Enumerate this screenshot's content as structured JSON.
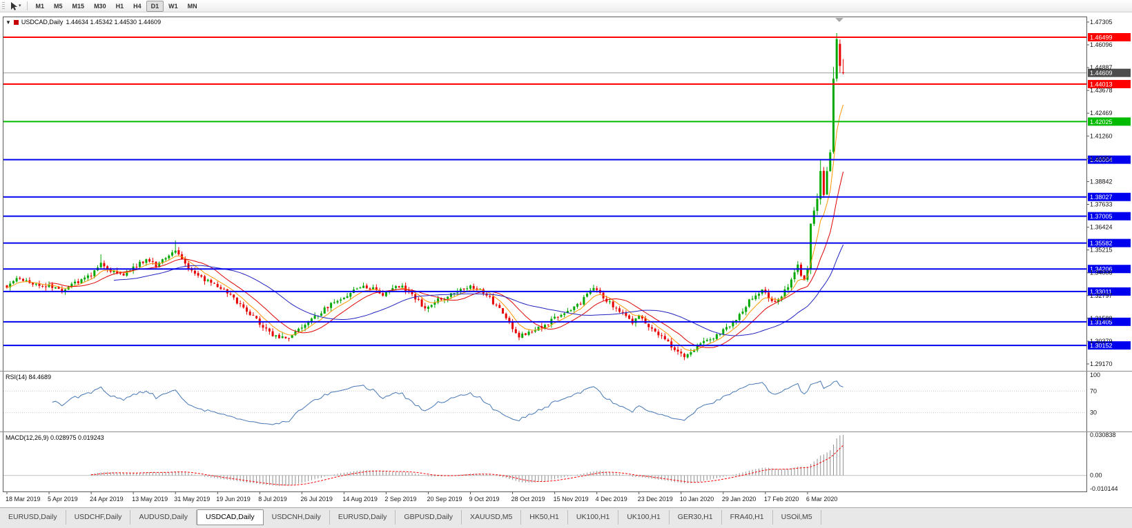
{
  "icons": {
    "toolbar_caret": "▾",
    "symbol_dropdown": "▼"
  },
  "toolbar": {
    "timeframes": [
      "M1",
      "M5",
      "M15",
      "M30",
      "H1",
      "H4",
      "D1",
      "W1",
      "MN"
    ],
    "active_timeframe": "D1"
  },
  "chart": {
    "symbol": "USDCAD,Daily",
    "ohlc": "1.44634 1.45342 1.44530 1.44609",
    "rsi_label": "RSI(14) 84.4689",
    "macd_label": "MACD(12,26,9) 0.028975 0.019243"
  },
  "chart_data": {
    "type": "candlestick",
    "title": "USDCAD Daily",
    "ylim": [
      1.2895,
      1.4745
    ],
    "bars": 259,
    "bull_color": "#00a800",
    "bear_color": "#e80000",
    "close_anchors": [
      [
        0,
        1.333
      ],
      [
        4,
        1.3372
      ],
      [
        8,
        1.334
      ],
      [
        13,
        1.3328
      ],
      [
        17,
        1.331
      ],
      [
        21,
        1.3348
      ],
      [
        26,
        1.3388
      ],
      [
        29,
        1.3445
      ],
      [
        32,
        1.3415
      ],
      [
        36,
        1.3392
      ],
      [
        39,
        1.3428
      ],
      [
        43,
        1.347
      ],
      [
        46,
        1.3442
      ],
      [
        49,
        1.3488
      ],
      [
        52,
        1.3522
      ],
      [
        54,
        1.3478
      ],
      [
        56,
        1.3432
      ],
      [
        58,
        1.3396
      ],
      [
        61,
        1.3362
      ],
      [
        65,
        1.333
      ],
      [
        68,
        1.3295
      ],
      [
        71,
        1.3248
      ],
      [
        74,
        1.3195
      ],
      [
        78,
        1.3132
      ],
      [
        81,
        1.3085
      ],
      [
        84,
        1.3048
      ],
      [
        87,
        1.3062
      ],
      [
        91,
        1.3108
      ],
      [
        94,
        1.315
      ],
      [
        97,
        1.3192
      ],
      [
        100,
        1.3235
      ],
      [
        104,
        1.3272
      ],
      [
        107,
        1.3302
      ],
      [
        110,
        1.3332
      ],
      [
        113,
        1.3315
      ],
      [
        116,
        1.3288
      ],
      [
        119,
        1.3318
      ],
      [
        122,
        1.3332
      ],
      [
        126,
        1.3262
      ],
      [
        129,
        1.3215
      ],
      [
        132,
        1.325
      ],
      [
        135,
        1.327
      ],
      [
        138,
        1.3298
      ],
      [
        141,
        1.3322
      ],
      [
        143,
        1.3334
      ],
      [
        146,
        1.331
      ],
      [
        149,
        1.3262
      ],
      [
        152,
        1.3205
      ],
      [
        155,
        1.313
      ],
      [
        158,
        1.3062
      ],
      [
        161,
        1.3088
      ],
      [
        165,
        1.3112
      ],
      [
        169,
        1.3158
      ],
      [
        173,
        1.3188
      ],
      [
        177,
        1.324
      ],
      [
        179,
        1.3298
      ],
      [
        181,
        1.3322
      ],
      [
        184,
        1.3272
      ],
      [
        187,
        1.3225
      ],
      [
        190,
        1.318
      ],
      [
        193,
        1.3142
      ],
      [
        195,
        1.3168
      ],
      [
        198,
        1.312
      ],
      [
        201,
        1.3075
      ],
      [
        204,
        1.3028
      ],
      [
        207,
        1.2985
      ],
      [
        209,
        1.296
      ],
      [
        211,
        1.2982
      ],
      [
        213,
        1.3012
      ],
      [
        215,
        1.3042
      ],
      [
        217,
        1.3052
      ],
      [
        219,
        1.3068
      ],
      [
        221,
        1.3095
      ],
      [
        223,
        1.3122
      ],
      [
        225,
        1.316
      ],
      [
        227,
        1.3205
      ],
      [
        229,
        1.3252
      ],
      [
        231,
        1.3288
      ],
      [
        233,
        1.3305
      ],
      [
        235,
        1.3272
      ],
      [
        237,
        1.3248
      ],
      [
        239,
        1.3282
      ],
      [
        241,
        1.333
      ],
      [
        243,
        1.3398
      ],
      [
        244,
        1.3445
      ],
      [
        245,
        1.3388
      ],
      [
        246,
        1.336
      ],
      [
        247,
        1.342
      ],
      [
        248,
        1.366
      ],
      [
        249,
        1.3728
      ],
      [
        250,
        1.3795
      ],
      [
        251,
        1.3935
      ],
      [
        252,
        1.3818
      ],
      [
        253,
        1.3942
      ],
      [
        254,
        1.404
      ],
      [
        255,
        1.443
      ],
      [
        256,
        1.464
      ],
      [
        257,
        1.45
      ],
      [
        258,
        1.44609
      ]
    ],
    "bar_overrides": {
      "29": {
        "h": 1.3498
      },
      "52": {
        "h": 1.3572
      },
      "244": {
        "h": 1.3462
      },
      "251": {
        "h": 1.3998
      },
      "255": {
        "o": 1.4042,
        "c": 1.443,
        "h": 1.4492,
        "l": 1.4032
      },
      "256": {
        "o": 1.443,
        "c": 1.464,
        "h": 1.4672,
        "l": 1.4415
      },
      "257": {
        "o": 1.4615,
        "c": 1.4498,
        "h": 1.4638,
        "l": 1.4462
      },
      "258": {
        "o": 1.44634,
        "h": 1.45342,
        "l": 1.4453,
        "c": 1.44609
      }
    },
    "levels": [
      {
        "label": "1.46499",
        "value": 1.46499,
        "color": "#ff0000"
      },
      {
        "label": "1.44013",
        "value": 1.44013,
        "color": "#ff0000"
      },
      {
        "label": "1.42025",
        "value": 1.42025,
        "color": "#00bb00"
      },
      {
        "label": "1.40004",
        "value": 1.40004,
        "color": "#0000ee"
      },
      {
        "label": "1.38027",
        "value": 1.38027,
        "color": "#0000ee"
      },
      {
        "label": "1.37005",
        "value": 1.37005,
        "color": "#0000ee"
      },
      {
        "label": "1.35582",
        "value": 1.35582,
        "color": "#0000ee"
      },
      {
        "label": "1.34206",
        "value": 1.34206,
        "color": "#0000ee"
      },
      {
        "label": "1.33011",
        "value": 1.33011,
        "color": "#0000ee"
      },
      {
        "label": "1.31405",
        "value": 1.31405,
        "color": "#0000ee"
      },
      {
        "label": "1.30152",
        "value": 1.30152,
        "color": "#0000ee"
      }
    ],
    "current_price": {
      "label": "1.44609",
      "value": 1.44609,
      "box_color": "#4d4d4d",
      "line_color": "#9a9a9a"
    },
    "y_ticks": [
      "1.47305",
      "1.46096",
      "1.44887",
      "1.43678",
      "1.42469",
      "1.41260",
      "1.40051",
      "1.38842",
      "1.37633",
      "1.36424",
      "1.35215",
      "1.34006",
      "1.32797",
      "1.31588",
      "1.30379",
      "1.29170"
    ],
    "x_dates": [
      "18 Mar 2019",
      "5 Apr 2019",
      "24 Apr 2019",
      "13 May 2019",
      "31 May 2019",
      "19 Jun 2019",
      "8 Jul 2019",
      "26 Jul 2019",
      "14 Aug 2019",
      "2 Sep 2019",
      "20 Sep 2019",
      "9 Oct 2019",
      "28 Oct 2019",
      "15 Nov 2019",
      "4 Dec 2019",
      "23 Dec 2019",
      "10 Jan 2020",
      "29 Jan 2020",
      "17 Feb 2020",
      "6 Mar 2020"
    ],
    "moving_averages": [
      {
        "name": "ma-mid-orange",
        "type": "ema",
        "period": 7,
        "color": "#ff9500"
      },
      {
        "name": "ma-fast-red",
        "type": "sma",
        "period": 14,
        "color": "#e00000"
      },
      {
        "name": "ma-slow-blue",
        "type": "sma",
        "period": 34,
        "color": "#2020c0"
      }
    ],
    "rsi": {
      "period": 14,
      "color": "#4576b5",
      "levels": [
        {
          "label": "100",
          "value": 100
        },
        {
          "label": "70",
          "value": 70
        },
        {
          "label": "30",
          "value": 30
        }
      ]
    },
    "macd": {
      "histogram_color": "#909090",
      "signal_color": "#ff0000",
      "range": [
        -0.010144,
        0.030838
      ],
      "axis": [
        {
          "label": "0.030838",
          "value": 0.030838
        },
        {
          "label": "0.00",
          "value": 0
        },
        {
          "label": "-0.010144",
          "value": -0.010144
        }
      ]
    }
  },
  "tabs": {
    "active_index": 3,
    "items": [
      "EURUSD,Daily",
      "USDCHF,Daily",
      "AUDUSD,Daily",
      "USDCAD,Daily",
      "USDCNH,Daily",
      "EURUSD,Daily",
      "GBPUSD,Daily",
      "XAUUSD,M5",
      "HK50,H1",
      "UK100,H1",
      "UK100,H1",
      "GER30,H1",
      "FRA40,H1",
      "USOil,M5"
    ]
  }
}
